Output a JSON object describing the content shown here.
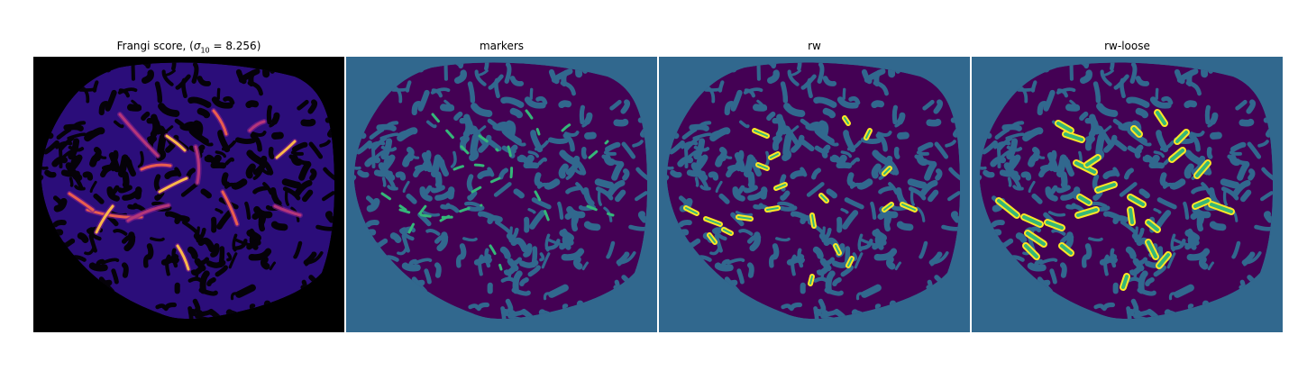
{
  "panels": [
    {
      "id": "frangi",
      "title_text": "Frangi score, (",
      "title_sigma": "σ",
      "title_sub": "10",
      "title_tail": " = 8.256)",
      "background": "#000000",
      "blob_color": "#2b0d7a",
      "hole_color": "#050208",
      "vessel_colors": [
        "#b5367a",
        "#e95e4f",
        "#fbb84a"
      ]
    },
    {
      "id": "markers",
      "title": "markers",
      "background": "#31688e",
      "blob_color": "#440154",
      "vessel_color": "#35b779"
    },
    {
      "id": "rw",
      "title": "rw",
      "background": "#31688e",
      "blob_color": "#440154",
      "vessel_color": "#35b779",
      "outline_color": "#fde725"
    },
    {
      "id": "rw-loose",
      "title": "rw-loose",
      "background": "#31688e",
      "blob_color": "#440154",
      "vessel_color": "#35b779",
      "outline_color": "#fde725"
    }
  ]
}
